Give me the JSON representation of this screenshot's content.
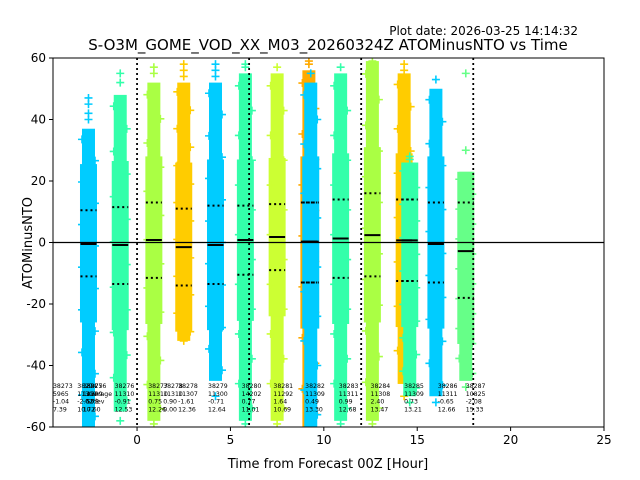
{
  "plot_date": "Plot date: 2026-03-25 14:14:32",
  "chart_data": {
    "type": "scatter",
    "title": "S-O3M_GOME_VOD_XX_M03_20260324Z ATOMinusNTO vs Time",
    "xlabel": "Time from Forecast 00Z [Hour]",
    "ylabel": "ATOMinusNTO",
    "xlim": [
      -4.5,
      25
    ],
    "ylim": [
      -60,
      60
    ],
    "x_ticks": [
      0,
      5,
      10,
      15,
      20,
      25
    ],
    "y_ticks": [
      -60,
      -40,
      -20,
      0,
      20,
      40,
      60
    ],
    "hline": 0,
    "vlines": [
      0,
      6,
      12,
      18
    ],
    "grid": false,
    "series": [
      {
        "x": -2.6,
        "color": "#00ccff",
        "min": -60,
        "max": 37,
        "outliers_high": [
          47,
          45,
          42,
          40
        ],
        "outliers_low": [
          -58
        ],
        "mean": -0.5,
        "upper_std": 10.5,
        "lower_std": -11
      },
      {
        "x": -0.9,
        "color": "#33ffaa",
        "min": -55,
        "max": 48,
        "outliers_high": [
          55,
          52
        ],
        "outliers_low": [
          -58
        ],
        "mean": -0.8,
        "upper_std": 11.5,
        "lower_std": -13.5
      },
      {
        "x": 0.9,
        "color": "#aaff44",
        "min": -58,
        "max": 52,
        "outliers_high": [
          57,
          55
        ],
        "outliers_low": [
          -59
        ],
        "mean": 0.8,
        "upper_std": 13,
        "lower_std": -11.5
      },
      {
        "x": 2.5,
        "color": "#ffcc00",
        "min": -32,
        "max": 52,
        "outliers_high": [
          58,
          56,
          54
        ],
        "outliers_low": [
          -28,
          -32
        ],
        "mean": -1.5,
        "upper_std": 11,
        "lower_std": -14
      },
      {
        "x": 4.2,
        "color": "#00ccff",
        "min": -45,
        "max": 52,
        "outliers_high": [
          58,
          56,
          54
        ],
        "outliers_low": [
          -50
        ],
        "mean": -0.8,
        "upper_std": 12,
        "lower_std": -13.5
      },
      {
        "x": 5.8,
        "color": "#33ffaa",
        "min": -58,
        "max": 55,
        "outliers_high": [
          58,
          57
        ],
        "outliers_low": [
          -59
        ],
        "mean": 0.8,
        "upper_std": 12,
        "lower_std": -10.5
      },
      {
        "x": 7.5,
        "color": "#ccff33",
        "min": -58,
        "max": 55,
        "outliers_high": [
          57
        ],
        "outliers_low": [
          -59
        ],
        "mean": 1.8,
        "upper_std": 12.5,
        "lower_std": -9
      },
      {
        "x": 9.2,
        "color": "#ffaa00",
        "min": -60,
        "max": 56,
        "outliers_high": [
          59,
          58
        ],
        "outliers_low": [
          -59
        ],
        "mean": 0.3,
        "upper_std": 13,
        "lower_std": -13
      },
      {
        "x": 9.3,
        "color": "#00ccff",
        "min": -60,
        "max": 52,
        "outliers_high": [
          55
        ],
        "outliers_low": [
          -59
        ],
        "mean": 0.3,
        "upper_std": 13,
        "lower_std": -13
      },
      {
        "x": 10.9,
        "color": "#33ffaa",
        "min": -58,
        "max": 55,
        "outliers_high": [
          57
        ],
        "outliers_low": [
          -59
        ],
        "mean": 1.3,
        "upper_std": 14,
        "lower_std": -11.5
      },
      {
        "x": 12.6,
        "color": "#aaff44",
        "min": -58,
        "max": 59,
        "outliers_high": [
          59
        ],
        "outliers_low": [
          -59
        ],
        "mean": 2.4,
        "upper_std": 16,
        "lower_std": -11
      },
      {
        "x": 14.3,
        "color": "#ffcc00",
        "min": -46,
        "max": 55,
        "outliers_high": [
          58,
          56
        ],
        "outliers_low": [
          -50
        ],
        "mean": 0.7,
        "upper_std": 14,
        "lower_std": -12.5
      },
      {
        "x": 14.6,
        "color": "#33ffaa",
        "min": -50,
        "max": 26,
        "outliers_high": [
          28,
          27
        ],
        "outliers_low": [
          -52
        ],
        "mean": 0.7,
        "upper_std": 14,
        "lower_std": -12.5
      },
      {
        "x": 16.0,
        "color": "#00ccff",
        "min": -50,
        "max": 50,
        "outliers_high": [
          53
        ],
        "outliers_low": [
          -52
        ],
        "mean": -0.5,
        "upper_std": 13,
        "lower_std": -13
      },
      {
        "x": 17.6,
        "color": "#66ff88",
        "min": -45,
        "max": 23,
        "outliers_high": [
          55,
          30
        ],
        "outliers_low": [
          -47
        ],
        "mean": -2.8,
        "upper_std": 13,
        "lower_std": -18
      }
    ],
    "annotations": [
      {
        "x": -4.5,
        "lines": [
          "38273",
          "5965",
          "-1.04",
          "7.39"
        ]
      },
      {
        "x": -3.2,
        "lines": [
          "38274",
          "11309",
          "-2.62",
          "10.72"
        ]
      },
      {
        "x": -2.9,
        "lines": [
          "38275",
          "11309",
          "-0.78",
          "10.60"
        ]
      },
      {
        "x": -2.7,
        "lines": [
          "38276",
          "Average",
          "Stdev"
        ]
      },
      {
        "x": -1.2,
        "lines": [
          "38276",
          "11310",
          "-0.91",
          "12.53"
        ]
      },
      {
        "x": 0.6,
        "lines": [
          "38277",
          "11310",
          "0.75",
          "12.26"
        ]
      },
      {
        "x": 1.4,
        "lines": [
          "38278",
          "11310",
          "0.90",
          "0.00"
        ]
      },
      {
        "x": 2.2,
        "lines": [
          "38278",
          "11307",
          "-1.61",
          "12.36"
        ]
      },
      {
        "x": 3.8,
        "lines": [
          "38279",
          "11300",
          "-0.71",
          "12.64"
        ]
      },
      {
        "x": 5.6,
        "lines": [
          "38280",
          "14202",
          "0.77",
          "11.01"
        ]
      },
      {
        "x": 7.3,
        "lines": [
          "38281",
          "11292",
          "1.64",
          "10.69"
        ]
      },
      {
        "x": 9.0,
        "lines": [
          "38282",
          "11309",
          "0.49",
          "13.30"
        ]
      },
      {
        "x": 10.8,
        "lines": [
          "38283",
          "11311",
          "0.99",
          "12.68"
        ]
      },
      {
        "x": 12.5,
        "lines": [
          "38284",
          "11308",
          "2.40",
          "13.47"
        ]
      },
      {
        "x": 14.3,
        "lines": [
          "38285",
          "11309",
          "0.73",
          "13.21"
        ]
      },
      {
        "x": 16.1,
        "lines": [
          "38286",
          "11311",
          "-0.65",
          "12.66"
        ]
      },
      {
        "x": 17.6,
        "lines": [
          "38287",
          "10825",
          "-2.08",
          "15.33"
        ]
      }
    ]
  }
}
